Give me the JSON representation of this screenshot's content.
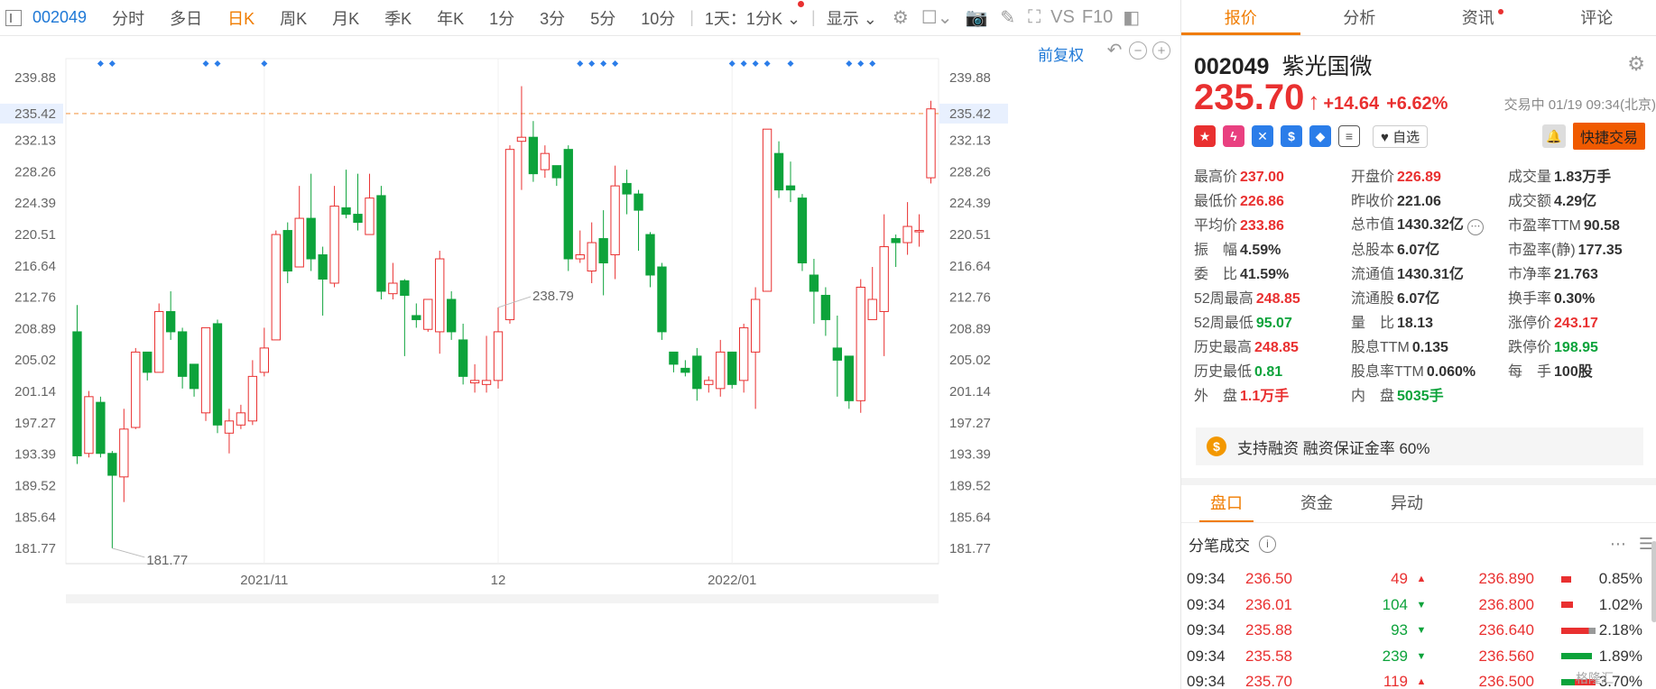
{
  "toolbar": {
    "code": "002049",
    "periods": [
      "分时",
      "多日",
      "日K",
      "周K",
      "月K",
      "季K",
      "年K",
      "1分",
      "3分",
      "5分",
      "10分"
    ],
    "active_period": "日K",
    "range_select": "1天：1分K",
    "display_select": "显示",
    "right_text": [
      "VS",
      "F10"
    ]
  },
  "chart_ctrl": {
    "restore_label": "前复权"
  },
  "chart_data": {
    "type": "candlestick",
    "y_ticks": [
      239.88,
      235.42,
      232.13,
      228.26,
      224.39,
      220.51,
      216.64,
      212.76,
      208.89,
      205.02,
      201.14,
      197.27,
      193.39,
      189.52,
      185.64,
      181.77
    ],
    "y_range": [
      179.9,
      242.2
    ],
    "current_price_line": 235.42,
    "x_labels": [
      {
        "label": "2021/11",
        "index": 16
      },
      {
        "label": "12",
        "index": 36
      },
      {
        "label": "2022/01",
        "index": 56
      }
    ],
    "high_label": {
      "value": "238.79",
      "index": 36
    },
    "low_label": {
      "value": "181.77",
      "index": 3
    },
    "marker_indices": [
      2,
      3,
      11,
      12,
      16,
      43,
      44,
      45,
      46,
      56,
      57,
      58,
      59,
      61,
      66,
      67,
      68
    ],
    "candles": [
      [
        208.5,
        193.2,
        211.8,
        192.2
      ],
      [
        193.5,
        200.5,
        201.2,
        193.0
      ],
      [
        199.8,
        193.5,
        200.5,
        193.0
      ],
      [
        193.5,
        190.8,
        193.8,
        181.8
      ],
      [
        190.6,
        196.5,
        199.0,
        187.5
      ],
      [
        196.7,
        206.0,
        206.5,
        196.5
      ],
      [
        206.0,
        203.5,
        206.0,
        202.5
      ],
      [
        203.5,
        211.0,
        212.0,
        203.5
      ],
      [
        211.0,
        208.5,
        213.5,
        207.5
      ],
      [
        208.5,
        203.0,
        209.0,
        201.5
      ],
      [
        204.5,
        201.5,
        204.5,
        200.5
      ],
      [
        198.5,
        209.0,
        209.0,
        197.5
      ],
      [
        209.5,
        197.0,
        210.0,
        196.0
      ],
      [
        196.0,
        197.5,
        199.0,
        193.5
      ],
      [
        197.0,
        198.5,
        199.5,
        196.5
      ],
      [
        197.5,
        203.0,
        205.0,
        197.0
      ],
      [
        203.5,
        206.5,
        209.0,
        203.0
      ],
      [
        207.5,
        220.5,
        221.0,
        207.5
      ],
      [
        221.0,
        216.0,
        222.0,
        214.5
      ],
      [
        216.5,
        222.5,
        226.5,
        216.5
      ],
      [
        222.5,
        217.5,
        228.0,
        216.0
      ],
      [
        218.0,
        215.0,
        219.0,
        210.5
      ],
      [
        214.5,
        224.0,
        226.5,
        214.0
      ],
      [
        223.8,
        223.0,
        228.5,
        222.5
      ],
      [
        223.0,
        222.0,
        228.0,
        221.0
      ],
      [
        220.5,
        225.0,
        228.0,
        220.5
      ],
      [
        225.3,
        213.5,
        226.5,
        212.5
      ],
      [
        213.2,
        214.5,
        217.0,
        212.5
      ],
      [
        214.8,
        213.0,
        215.0,
        205.5
      ],
      [
        210.5,
        210.0,
        212.0,
        209.0
      ],
      [
        208.8,
        212.5,
        212.5,
        208.5
      ],
      [
        208.5,
        217.5,
        218.5,
        205.8
      ],
      [
        212.5,
        208.5,
        213.5,
        207.5
      ],
      [
        207.5,
        203.0,
        209.5,
        202.0
      ],
      [
        202.2,
        202.5,
        204.5,
        201.0
      ],
      [
        202.0,
        202.5,
        208.0,
        201.0
      ],
      [
        202.5,
        208.5,
        211.5,
        201.5
      ],
      [
        210.0,
        231.0,
        231.5,
        209.5
      ],
      [
        232.0,
        232.5,
        238.8,
        226.0
      ],
      [
        232.5,
        228.0,
        234.5,
        227.0
      ],
      [
        228.5,
        230.5,
        231.5,
        227.5
      ],
      [
        229.0,
        227.5,
        229.0,
        226.5
      ],
      [
        231.0,
        217.5,
        231.5,
        216.0
      ],
      [
        217.5,
        218.0,
        221.0,
        217.0
      ],
      [
        216.0,
        219.5,
        222.0,
        214.5
      ],
      [
        220.0,
        217.0,
        223.5,
        213.0
      ],
      [
        218.0,
        226.5,
        229.0,
        215.0
      ],
      [
        226.8,
        225.5,
        228.5,
        223.0
      ],
      [
        225.5,
        223.5,
        226.0,
        218.5
      ],
      [
        220.5,
        215.5,
        220.8,
        214.0
      ],
      [
        216.5,
        208.5,
        217.0,
        207.5
      ],
      [
        206.0,
        204.5,
        206.0,
        203.5
      ],
      [
        204.0,
        203.5,
        205.0,
        203.0
      ],
      [
        205.5,
        201.5,
        206.5,
        200.0
      ],
      [
        202.0,
        202.5,
        203.0,
        201.0
      ],
      [
        201.5,
        206.0,
        207.5,
        200.5
      ],
      [
        206.0,
        202.0,
        206.0,
        201.5
      ],
      [
        202.5,
        209.0,
        209.5,
        201.0
      ],
      [
        206.0,
        212.5,
        214.0,
        199.0
      ],
      [
        213.5,
        233.5,
        233.5,
        213.5
      ],
      [
        230.5,
        226.0,
        232.0,
        225.0
      ],
      [
        226.5,
        226.0,
        229.5,
        224.5
      ],
      [
        225.0,
        217.0,
        225.5,
        216.0
      ],
      [
        215.5,
        213.5,
        217.5,
        209.5
      ],
      [
        213.0,
        210.0,
        214.0,
        208.0
      ],
      [
        206.5,
        205.0,
        210.5,
        200.5
      ],
      [
        205.5,
        200.0,
        205.5,
        199.0
      ],
      [
        200.0,
        214.0,
        215.0,
        198.5
      ],
      [
        210.0,
        212.5,
        216.5,
        210.0
      ],
      [
        211.0,
        219.0,
        223.0,
        205.5
      ],
      [
        220.0,
        219.5,
        220.5,
        216.5
      ],
      [
        219.5,
        221.5,
        224.5,
        218.0
      ],
      [
        221.0,
        221.0,
        223.0,
        219.0
      ],
      [
        227.5,
        236.0,
        237.0,
        226.8
      ]
    ]
  },
  "side": {
    "tabs": [
      "报价",
      "分析",
      "资讯",
      "评论"
    ],
    "code": "002049",
    "name": "紫光国微",
    "price": "235.70",
    "change": "+14.64",
    "pct": "+6.62%",
    "time": "交易中 01/19 09:34(北京)",
    "fav_label": "自选",
    "trade_label": "快捷交易",
    "quote_rows": [
      [
        {
          "l": "最高价",
          "v": "237.00",
          "c": "red"
        },
        {
          "l": "开盘价",
          "v": "226.89",
          "c": "red"
        },
        {
          "l": "成交量",
          "v": "1.83万手",
          "c": ""
        }
      ],
      [
        {
          "l": "最低价",
          "v": "226.86",
          "c": "red"
        },
        {
          "l": "昨收价",
          "v": "221.06",
          "c": ""
        },
        {
          "l": "成交额",
          "v": "4.29亿",
          "c": ""
        }
      ],
      [
        {
          "l": "平均价",
          "v": "233.86",
          "c": "red"
        },
        {
          "l": "总市值",
          "v": "1430.32亿",
          "c": ""
        },
        {
          "l": "市盈率TTM",
          "v": "90.58",
          "c": ""
        }
      ],
      [
        {
          "l": "振　幅",
          "v": "4.59%",
          "c": ""
        },
        {
          "l": "总股本",
          "v": "6.07亿",
          "c": ""
        },
        {
          "l": "市盈率(静)",
          "v": "177.35",
          "c": ""
        }
      ],
      [
        {
          "l": "委　比",
          "v": "41.59%",
          "c": ""
        },
        {
          "l": "流通值",
          "v": "1430.31亿",
          "c": ""
        },
        {
          "l": "市净率",
          "v": "21.763",
          "c": ""
        }
      ],
      [
        {
          "l": "52周最高",
          "v": "248.85",
          "c": "red"
        },
        {
          "l": "流通股",
          "v": "6.07亿",
          "c": ""
        },
        {
          "l": "换手率",
          "v": "0.30%",
          "c": ""
        }
      ],
      [
        {
          "l": "52周最低",
          "v": "95.07",
          "c": "green"
        },
        {
          "l": "量　比",
          "v": "18.13",
          "c": ""
        },
        {
          "l": "涨停价",
          "v": "243.17",
          "c": "red"
        }
      ],
      [
        {
          "l": "历史最高",
          "v": "248.85",
          "c": "red"
        },
        {
          "l": "股息TTM",
          "v": "0.135",
          "c": ""
        },
        {
          "l": "跌停价",
          "v": "198.95",
          "c": "green"
        }
      ],
      [
        {
          "l": "历史最低",
          "v": "0.81",
          "c": "green"
        },
        {
          "l": "股息率TTM",
          "v": "0.060%",
          "c": ""
        },
        {
          "l": "每　手",
          "v": "100股",
          "c": ""
        }
      ],
      [
        {
          "l": "外　盘",
          "v": "1.1万手",
          "c": "red"
        },
        {
          "l": "内　盘",
          "v": "5035手",
          "c": "green"
        },
        {
          "l": "",
          "v": "",
          "c": ""
        }
      ]
    ],
    "margin_text": "支持融资 融资保证金率 60%",
    "sub_tabs": [
      "盘口",
      "资金",
      "异动"
    ],
    "tick_title": "分笔成交",
    "ticks": [
      {
        "t": "09:34",
        "p": "236.50",
        "v": "49",
        "dir": "up",
        "ap": "236.890",
        "bar": "red",
        "fill": 0.3,
        "pct": "0.85%"
      },
      {
        "t": "09:34",
        "p": "236.01",
        "v": "104",
        "dir": "down",
        "ap": "236.800",
        "bar": "red",
        "fill": 0.35,
        "pct": "1.02%"
      },
      {
        "t": "09:34",
        "p": "235.88",
        "v": "93",
        "dir": "down",
        "ap": "236.640",
        "bar": "mix",
        "fill": 1.0,
        "pct": "2.18%"
      },
      {
        "t": "09:34",
        "p": "235.58",
        "v": "239",
        "dir": "down",
        "ap": "236.560",
        "bar": "green",
        "fill": 0.9,
        "pct": "1.89%"
      },
      {
        "t": "09:34",
        "p": "235.70",
        "v": "119",
        "dir": "up",
        "ap": "236.500",
        "bar": "mix2",
        "fill": 1.0,
        "pct": "3.70%"
      }
    ],
    "watermark": "格隆汇"
  }
}
